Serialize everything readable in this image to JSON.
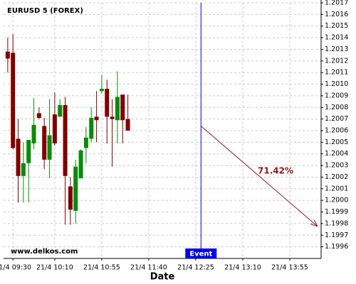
{
  "chart_data": {
    "type": "candlestick",
    "title": "EURUSD 5 (FOREX)",
    "watermark": "www.delkos.com",
    "x_label": "Date",
    "x": [
      565,
      570,
      575,
      580,
      585,
      590,
      595,
      600,
      605,
      610,
      615,
      620,
      625,
      630,
      635,
      640,
      645,
      650,
      655,
      660,
      665,
      670,
      675,
      680
    ],
    "open": [
      1.20128,
      1.20127,
      1.20053,
      1.20021,
      1.20032,
      1.20049,
      1.20075,
      1.20064,
      1.20035,
      1.20074,
      1.20072,
      1.20082,
      1.20012,
      1.19991,
      1.20019,
      1.20045,
      1.20053,
      1.20072,
      1.20094,
      1.20096,
      1.20072,
      1.20069,
      1.20091,
      1.2007
    ],
    "high": [
      1.2014,
      1.20143,
      1.2007,
      1.2005,
      1.20052,
      1.20088,
      1.2008,
      1.20071,
      1.20087,
      1.20093,
      1.20087,
      1.20089,
      1.2002,
      1.20035,
      1.20044,
      1.20063,
      1.2008,
      1.20094,
      1.20108,
      1.20104,
      1.20087,
      1.20111,
      1.20091,
      1.20091
    ],
    "low": [
      1.2011,
      1.20044,
      1.19998,
      1.19998,
      1.19998,
      1.20044,
      1.2007,
      1.20027,
      1.20019,
      1.20047,
      1.20072,
      1.19979,
      1.19979,
      1.1998,
      1.20019,
      1.20032,
      1.2005,
      1.2005,
      1.20092,
      1.20049,
      1.20029,
      1.20049,
      1.20049,
      1.2006
    ],
    "close": [
      1.20122,
      1.20045,
      1.20021,
      1.20032,
      1.20052,
      1.20065,
      1.20071,
      1.20035,
      1.20056,
      1.20049,
      1.20082,
      1.20021,
      1.19992,
      1.20029,
      1.20043,
      1.20054,
      1.20071,
      1.20069,
      1.20096,
      1.20072,
      1.2007,
      1.20089,
      1.20069,
      1.2006
    ],
    "up_color": "#0a8a0a",
    "down_color": "#7f0000",
    "event": {
      "x": 750,
      "label": "Event",
      "color": "#0000e0"
    },
    "prediction": {
      "x0": 750,
      "y0": 1.20064,
      "x1": 861,
      "y1": 1.19978,
      "label": "71.42%",
      "color": "#8b1a1a"
    },
    "xlim": [
      561,
      865
    ],
    "ylim": [
      1.1995,
      1.2017
    ],
    "xticks": [
      {
        "value": 570,
        "label": "21/4 09:30"
      },
      {
        "value": 610,
        "label": "21/4 10:10"
      },
      {
        "value": 655,
        "label": "21/4 10:55"
      },
      {
        "value": 700,
        "label": "21/4 11:40"
      },
      {
        "value": 745,
        "label": "21/4 12:25"
      },
      {
        "value": 790,
        "label": "21/4 13:10"
      },
      {
        "value": 835,
        "label": "21/4 13:55"
      }
    ],
    "yticks": [
      1.1996,
      1.1997,
      1.1998,
      1.1999,
      {
        "value": 1.2,
        "label": "1.2000"
      },
      1.2001,
      1.2002,
      1.2003,
      1.2004,
      1.2005,
      1.2006,
      1.2007,
      1.2008,
      1.2009,
      {
        "value": 1.201,
        "label": "1.2010"
      },
      1.2011,
      1.2012,
      1.2013,
      1.2014,
      1.2015,
      1.2016,
      1.2017
    ],
    "grid": true
  }
}
